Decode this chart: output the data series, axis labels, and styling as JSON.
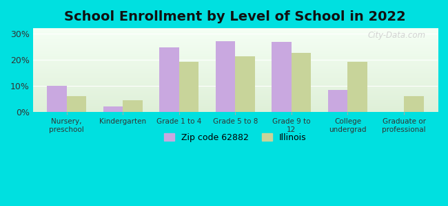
{
  "title": "School Enrollment by Level of School in 2022",
  "categories": [
    "Nursery,\npreschool",
    "Kindergarten",
    "Grade 1 to 4",
    "Grade 5 to 8",
    "Grade 9 to\n12",
    "College\nundergrad",
    "Graduate or\nprofessional"
  ],
  "zip_values": [
    9.9,
    2.3,
    24.8,
    27.0,
    26.8,
    8.4,
    0.0
  ],
  "il_values": [
    6.1,
    4.6,
    19.1,
    21.3,
    22.7,
    19.2,
    6.1
  ],
  "zip_color": "#c9a8e0",
  "il_color": "#c8d49a",
  "background_outer": "#00e0e0",
  "background_inner_top": "#f5fff5",
  "background_inner_bottom": "#dff0d8",
  "ylim": [
    0,
    32
  ],
  "yticks": [
    0,
    10,
    20,
    30
  ],
  "ytick_labels": [
    "0%",
    "10%",
    "20%",
    "30%"
  ],
  "legend_label_zip": "Zip code 62882",
  "legend_label_il": "Illinois",
  "title_fontsize": 14,
  "watermark_text": "City-Data.com"
}
